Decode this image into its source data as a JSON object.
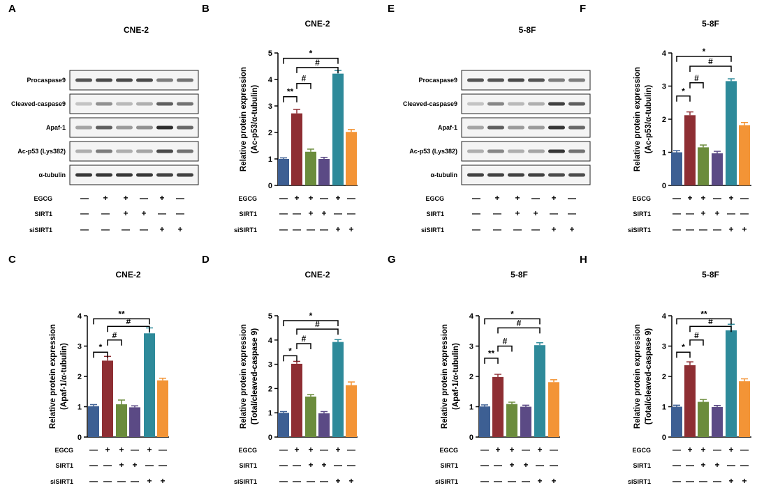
{
  "panel_labels": [
    "A",
    "B",
    "C",
    "D",
    "E",
    "F",
    "G",
    "H"
  ],
  "condition_rows": [
    {
      "label": "EGCG",
      "marks": [
        "—",
        "+",
        "+",
        "—",
        "+",
        "—"
      ]
    },
    {
      "label": "SIRT1",
      "marks": [
        "—",
        "—",
        "+",
        "+",
        "—",
        "—"
      ]
    },
    {
      "label": "siSIRT1",
      "marks": [
        "—",
        "—",
        "—",
        "—",
        "+",
        "+"
      ]
    }
  ],
  "blots": [
    {
      "title": "CNE-2",
      "rows": [
        "Procaspase9",
        "Cleaved-caspase9",
        "Apaf-1",
        "Ac-p53 (Lys382)",
        "α-tubulin"
      ],
      "intensities": [
        [
          0.75,
          0.8,
          0.8,
          0.8,
          0.55,
          0.6
        ],
        [
          0.2,
          0.45,
          0.25,
          0.3,
          0.7,
          0.6
        ],
        [
          0.35,
          0.7,
          0.4,
          0.45,
          0.95,
          0.65
        ],
        [
          0.3,
          0.55,
          0.3,
          0.35,
          0.8,
          0.6
        ],
        [
          0.9,
          0.9,
          0.9,
          0.9,
          0.85,
          0.85
        ]
      ]
    },
    {
      "title": "5-8F",
      "rows": [
        "Procaspase9",
        "Cleaved-caspase9",
        "Apaf-1",
        "Ac-p53 (Lys382)",
        "α-tubulin"
      ],
      "intensities": [
        [
          0.75,
          0.75,
          0.8,
          0.75,
          0.55,
          0.55
        ],
        [
          0.2,
          0.5,
          0.25,
          0.3,
          0.85,
          0.7
        ],
        [
          0.35,
          0.7,
          0.4,
          0.4,
          0.9,
          0.65
        ],
        [
          0.3,
          0.5,
          0.3,
          0.35,
          0.9,
          0.6
        ],
        [
          0.85,
          0.85,
          0.85,
          0.85,
          0.8,
          0.8
        ]
      ]
    }
  ],
  "bar_colors": [
    "#3d5f93",
    "#8e2e33",
    "#6b8c3c",
    "#5b4a85",
    "#2e8a9a",
    "#f39436"
  ],
  "chart_data": [
    {
      "type": "bar",
      "panel": "B",
      "title": "CNE-2",
      "ylabel": [
        "Relative protein expression",
        "(Ac-p53/α-tubulin)"
      ],
      "ylim": [
        0,
        5
      ],
      "yticks": [
        0,
        1,
        2,
        3,
        4,
        5
      ],
      "values": [
        1.0,
        2.72,
        1.27,
        1.0,
        4.22,
        2.02
      ],
      "errors": [
        0.04,
        0.15,
        0.1,
        0.06,
        0.12,
        0.09
      ],
      "brackets": [
        {
          "from": 0,
          "to": 4,
          "y": 4.8,
          "label": "*"
        },
        {
          "from": 1,
          "to": 4,
          "y": 4.45,
          "label": "#"
        },
        {
          "from": 1,
          "to": 2,
          "y": 3.85,
          "label": "#"
        },
        {
          "from": 0,
          "to": 1,
          "y": 3.35,
          "label": "**"
        }
      ]
    },
    {
      "type": "bar",
      "panel": "C",
      "title": "CNE-2",
      "ylabel": [
        "Relative protein expression",
        "(Apaf-1/α-tubulin)"
      ],
      "ylim": [
        0,
        4
      ],
      "yticks": [
        0,
        1,
        2,
        3,
        4
      ],
      "values": [
        1.02,
        2.52,
        1.08,
        0.98,
        3.42,
        1.87
      ],
      "errors": [
        0.05,
        0.14,
        0.14,
        0.05,
        0.18,
        0.07
      ],
      "brackets": [
        {
          "from": 0,
          "to": 4,
          "y": 3.9,
          "label": "**"
        },
        {
          "from": 1,
          "to": 4,
          "y": 3.65,
          "label": "#"
        },
        {
          "from": 1,
          "to": 2,
          "y": 3.2,
          "label": "#"
        },
        {
          "from": 0,
          "to": 1,
          "y": 2.8,
          "label": "*"
        }
      ]
    },
    {
      "type": "bar",
      "panel": "D",
      "title": "CNE-2",
      "ylabel": [
        "Relative protein expression",
        "(Total/cleaved-caspase 9)"
      ],
      "ylim": [
        0,
        5
      ],
      "yticks": [
        0,
        1,
        2,
        3,
        4,
        5
      ],
      "values": [
        1.0,
        3.02,
        1.67,
        0.98,
        3.92,
        2.14
      ],
      "errors": [
        0.05,
        0.1,
        0.08,
        0.07,
        0.1,
        0.13
      ],
      "brackets": [
        {
          "from": 0,
          "to": 4,
          "y": 4.8,
          "label": "*"
        },
        {
          "from": 1,
          "to": 4,
          "y": 4.45,
          "label": "#"
        },
        {
          "from": 1,
          "to": 2,
          "y": 3.85,
          "label": "#"
        },
        {
          "from": 0,
          "to": 1,
          "y": 3.35,
          "label": "*"
        }
      ]
    },
    {
      "type": "bar",
      "panel": "F",
      "title": "5-8F",
      "ylabel": [
        "Relative protein expression",
        "(Ac-p53/α-tubulin)"
      ],
      "ylim": [
        0,
        4
      ],
      "yticks": [
        0,
        1,
        2,
        3,
        4
      ],
      "values": [
        1.0,
        2.12,
        1.15,
        0.97,
        3.15,
        1.82
      ],
      "errors": [
        0.05,
        0.1,
        0.07,
        0.06,
        0.07,
        0.08
      ],
      "brackets": [
        {
          "from": 0,
          "to": 4,
          "y": 3.9,
          "label": "*"
        },
        {
          "from": 1,
          "to": 4,
          "y": 3.6,
          "label": "#"
        },
        {
          "from": 1,
          "to": 2,
          "y": 3.1,
          "label": "#"
        },
        {
          "from": 0,
          "to": 1,
          "y": 2.7,
          "label": "*"
        }
      ]
    },
    {
      "type": "bar",
      "panel": "G",
      "title": "5-8F",
      "ylabel": [
        "Relative protein expression",
        "(Apaf-1/α-tubulin)"
      ],
      "ylim": [
        0,
        4
      ],
      "yticks": [
        0,
        1,
        2,
        3,
        4
      ],
      "values": [
        1.01,
        1.98,
        1.09,
        1.0,
        3.03,
        1.81
      ],
      "errors": [
        0.05,
        0.09,
        0.06,
        0.05,
        0.08,
        0.08
      ],
      "brackets": [
        {
          "from": 0,
          "to": 4,
          "y": 3.9,
          "label": "*"
        },
        {
          "from": 1,
          "to": 4,
          "y": 3.6,
          "label": "#"
        },
        {
          "from": 1,
          "to": 2,
          "y": 3.0,
          "label": "#"
        },
        {
          "from": 0,
          "to": 1,
          "y": 2.6,
          "label": "**"
        }
      ]
    },
    {
      "type": "bar",
      "panel": "H",
      "title": "5-8F",
      "ylabel": [
        "Relative protein expression",
        "(Total/cleaved-caspase 9)"
      ],
      "ylim": [
        0,
        4
      ],
      "yticks": [
        0,
        1,
        2,
        3,
        4
      ],
      "values": [
        1.0,
        2.37,
        1.16,
        0.99,
        3.52,
        1.84
      ],
      "errors": [
        0.05,
        0.11,
        0.08,
        0.05,
        0.2,
        0.08
      ],
      "brackets": [
        {
          "from": 0,
          "to": 4,
          "y": 3.9,
          "label": "**"
        },
        {
          "from": 1,
          "to": 4,
          "y": 3.65,
          "label": "#"
        },
        {
          "from": 1,
          "to": 2,
          "y": 3.2,
          "label": "#"
        },
        {
          "from": 0,
          "to": 1,
          "y": 2.8,
          "label": "*"
        }
      ]
    }
  ]
}
